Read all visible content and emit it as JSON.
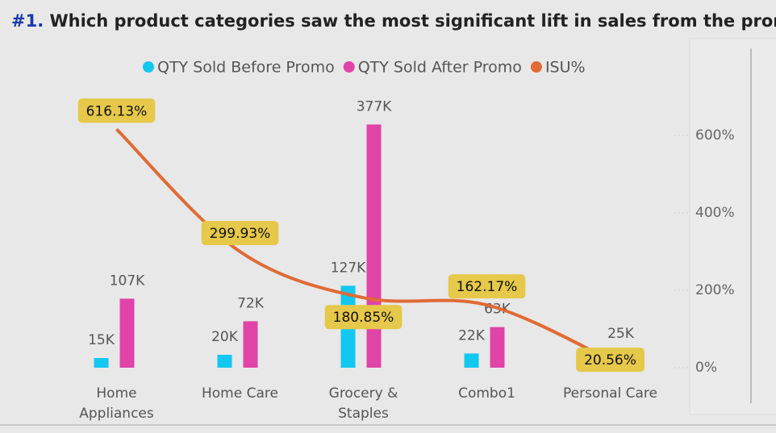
{
  "chart_data": {
    "type": "combo",
    "title_number": "#1.",
    "title": "Which product categories saw the most significant lift in sales from the promotions?",
    "categories": [
      "Home Appliances",
      "Home Care",
      "Grocery & Staples",
      "Combo1",
      "Personal Care"
    ],
    "series": [
      {
        "name": "QTY Sold Before Promo",
        "type": "bar",
        "color": "#12c8f0",
        "values": [
          15000,
          20000,
          127000,
          22000,
          21000
        ],
        "value_labels": [
          "15K",
          "20K",
          "127K",
          "22K",
          null
        ]
      },
      {
        "name": "QTY Sold After Promo",
        "type": "bar",
        "color": "#e044a7",
        "values": [
          107000,
          72000,
          377000,
          63000,
          25000
        ],
        "value_labels": [
          "107K",
          "72K",
          "377K",
          "63K",
          "25K"
        ]
      },
      {
        "name": "ISU%",
        "type": "line",
        "axis": "y2",
        "color": "#e06b35",
        "values": [
          616.13,
          299.93,
          180.85,
          162.17,
          20.56
        ],
        "value_labels": [
          "616.13%",
          "299.93%",
          "180.85%",
          "162.17%",
          "20.56%"
        ]
      }
    ],
    "ylim": [
      0,
      420000
    ],
    "y2lim": [
      0,
      700
    ],
    "y2ticks": [
      {
        "value": 0,
        "label": "0%"
      },
      {
        "value": 200,
        "label": "200%"
      },
      {
        "value": 400,
        "label": "400%"
      },
      {
        "value": 600,
        "label": "600%"
      }
    ],
    "legend": "top"
  }
}
